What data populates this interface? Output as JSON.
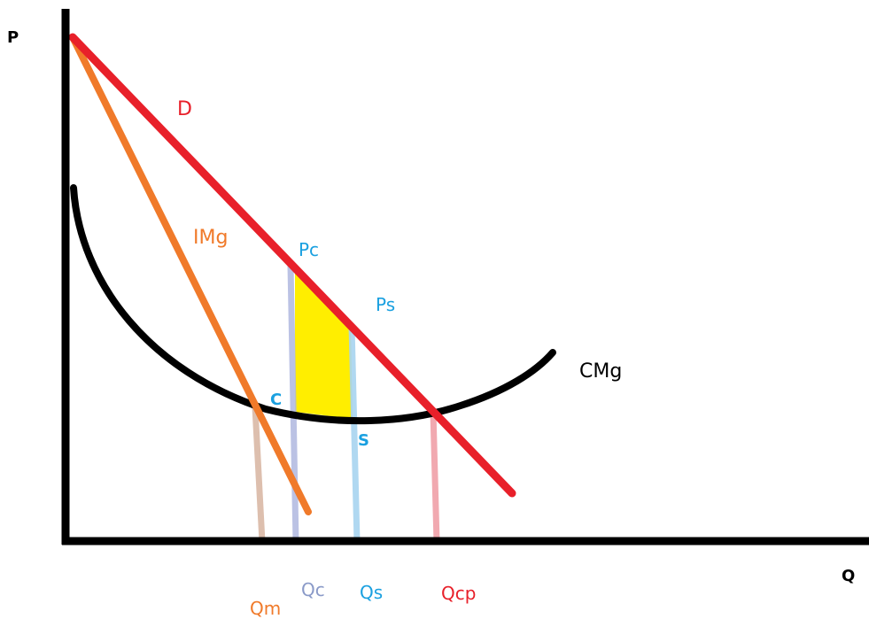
{
  "axes": {
    "y_label": "P",
    "x_label": "Q"
  },
  "curves": {
    "demand": {
      "label": "D",
      "color": "#e8202a"
    },
    "marginal_revenue": {
      "label": "IMg",
      "color": "#f07a2a"
    },
    "marginal_cost": {
      "label": "CMg",
      "color": "#000000"
    }
  },
  "points": {
    "pc": {
      "label": "Pc",
      "color": "#1aa0e0"
    },
    "ps": {
      "label": "Ps",
      "color": "#1aa0e0"
    },
    "c": {
      "label": "C",
      "color": "#1aa0e0"
    },
    "s": {
      "label": "S",
      "color": "#1aa0e0"
    }
  },
  "quantities": {
    "qm": {
      "label": "Qm",
      "color": "#f07a2a",
      "guide_color": "#d8b4a0"
    },
    "qc": {
      "label": "Qc",
      "color": "#8a9ac8",
      "guide_color": "#b0b8e0"
    },
    "qs": {
      "label": "Qs",
      "color": "#1aa0e0",
      "guide_color": "#a8d4f0"
    },
    "qcp": {
      "label": "Qcp",
      "color": "#e8202a",
      "guide_color": "#f0a0a8"
    }
  },
  "area": {
    "color": "#ffee00"
  }
}
